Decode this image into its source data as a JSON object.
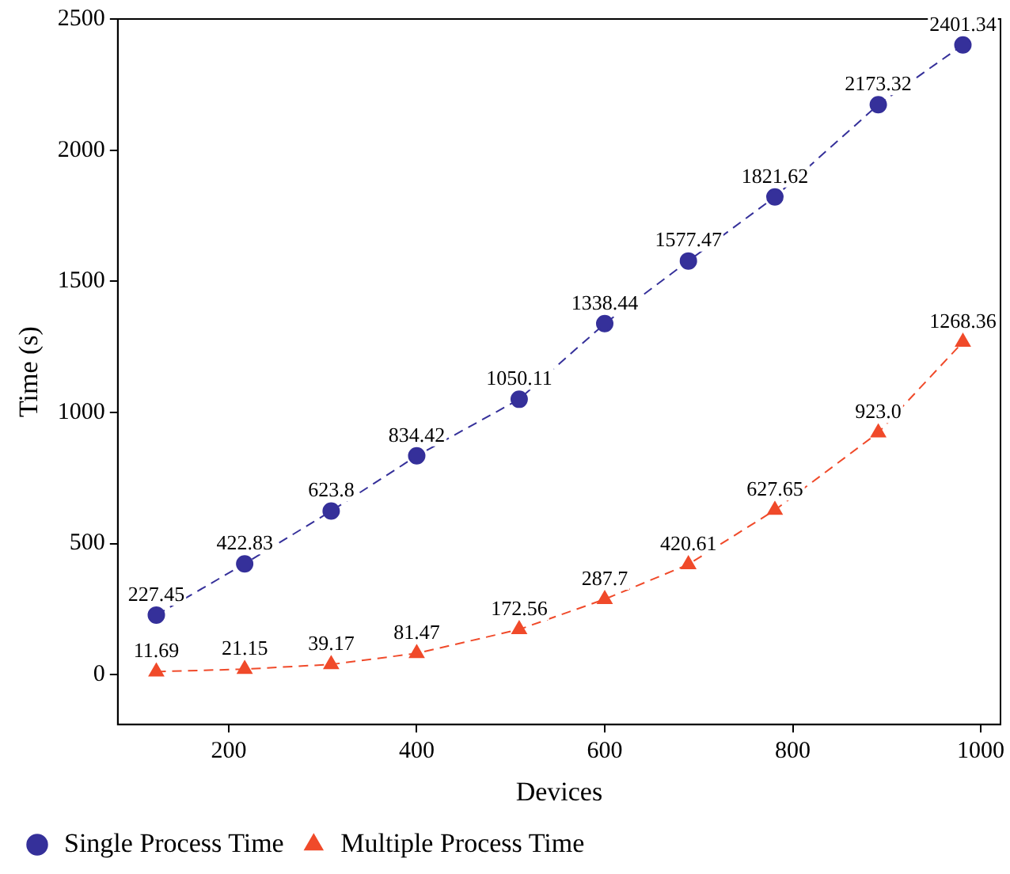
{
  "chart_data": {
    "type": "line",
    "xlabel": "Devices",
    "ylabel": "Time (s)",
    "x": [
      123,
      217,
      309,
      400,
      509,
      600,
      689,
      781,
      891,
      981
    ],
    "xlim": [
      82,
      1021
    ],
    "ylim": [
      -190,
      2500
    ],
    "xticks": [
      200,
      400,
      600,
      800,
      1000
    ],
    "yticks": [
      0,
      500,
      1000,
      1500,
      2000,
      2500
    ],
    "series": [
      {
        "name": "Single Process Time",
        "color": "#35309a",
        "marker": "circle",
        "line_style": "dashed",
        "values": [
          227.45,
          422.83,
          623.8,
          834.42,
          1050.11,
          1338.44,
          1577.47,
          1821.62,
          2173.32,
          2401.34
        ],
        "value_labels": [
          "227.45",
          "422.83",
          "623.8",
          "834.42",
          "1050.11",
          "1338.44",
          "1577.47",
          "1821.62",
          "2173.32",
          "2401.34"
        ]
      },
      {
        "name": "Multiple Process Time",
        "color": "#f04a2a",
        "marker": "triangle",
        "line_style": "dashed",
        "values": [
          11.69,
          21.15,
          39.17,
          81.47,
          172.56,
          287.7,
          420.61,
          627.65,
          923.0,
          1268.36
        ],
        "value_labels": [
          "11.69",
          "21.15",
          "39.17",
          "81.47",
          "172.56",
          "287.7",
          "420.61",
          "627.65",
          "923.0",
          "1268.36"
        ]
      }
    ],
    "grid": false,
    "legend": "bottom left"
  }
}
